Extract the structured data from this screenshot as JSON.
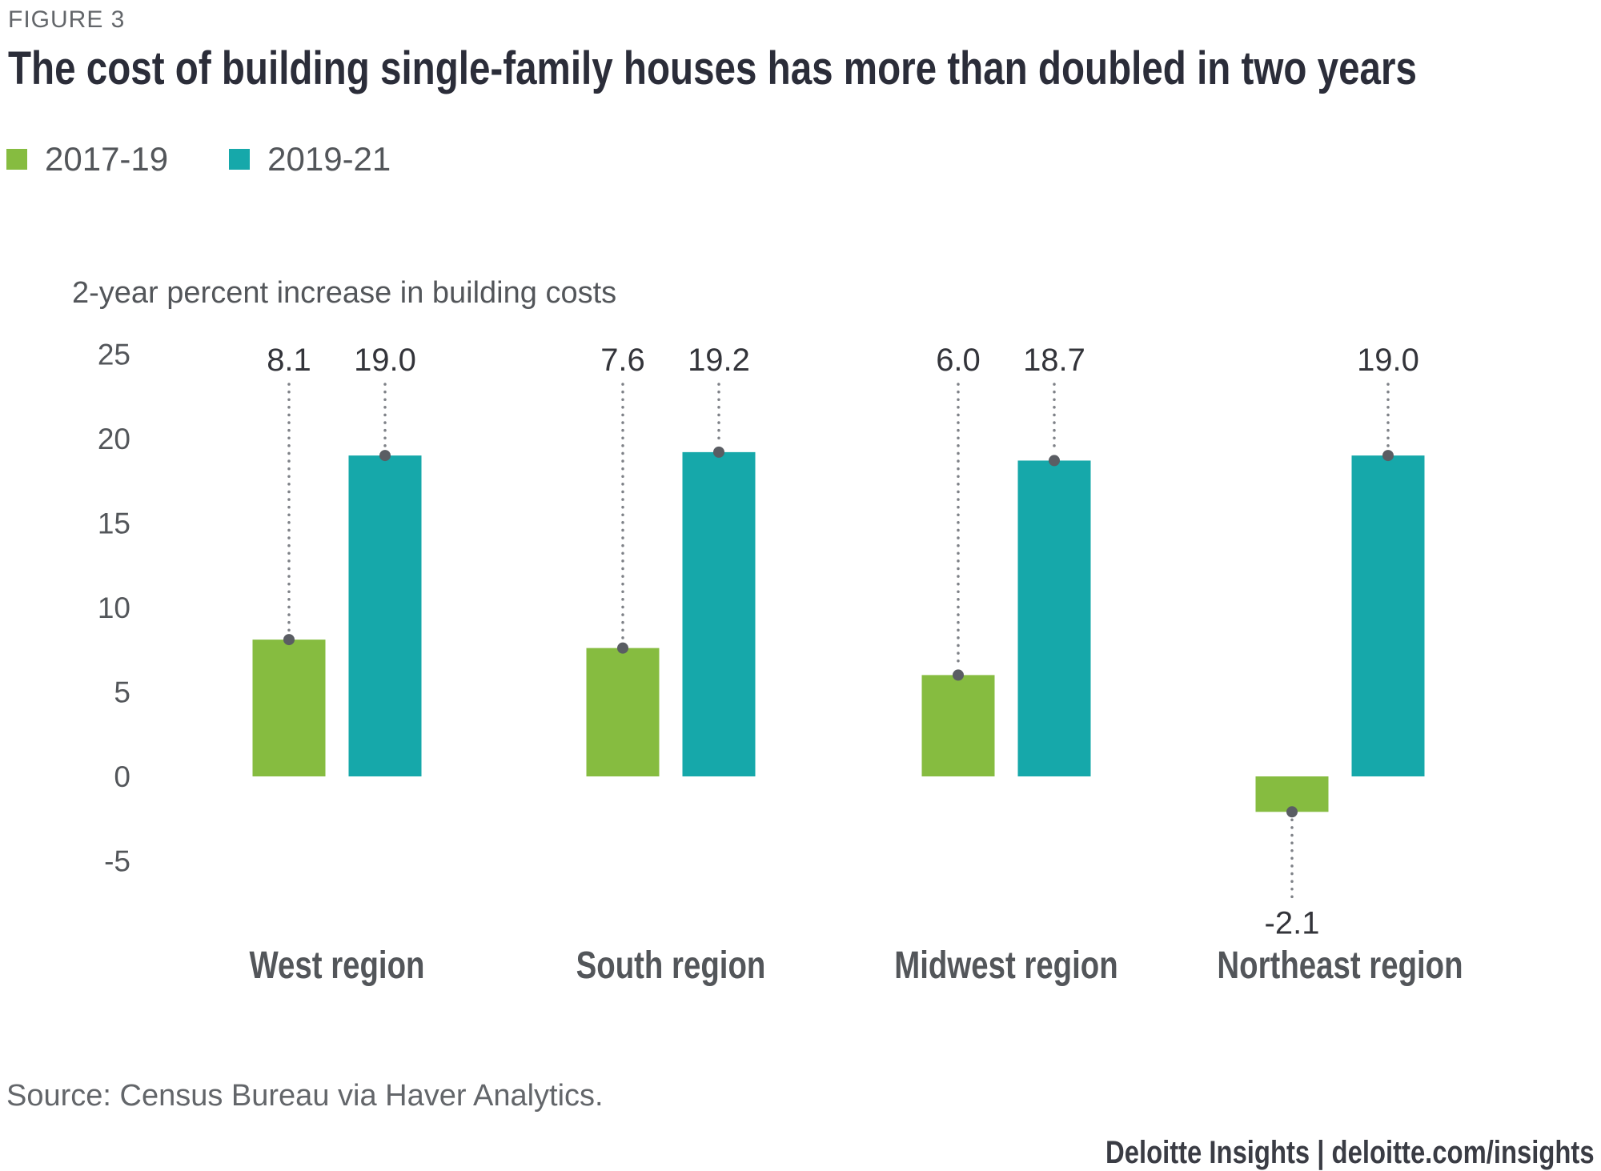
{
  "figure": {
    "label": "FIGURE 3",
    "title": "The cost of building single-family houses has more than doubled in two years"
  },
  "legend": {
    "items": [
      {
        "label": "2017-19",
        "color": "#86BC40"
      },
      {
        "label": "2019-21",
        "color": "#16A8AA"
      }
    ]
  },
  "chart_data": {
    "type": "bar",
    "title": "The cost of building single-family houses has more than doubled in two years",
    "xlabel": "",
    "ylabel": "2-year percent increase in building costs",
    "categories": [
      "West region",
      "South region",
      "Midwest region",
      "Northeast region"
    ],
    "series": [
      {
        "name": "2017-19",
        "color": "#86BC40",
        "values": [
          8.1,
          7.6,
          6.0,
          -2.1
        ]
      },
      {
        "name": "2019-21",
        "color": "#16A8AA",
        "values": [
          19.0,
          19.2,
          18.7,
          19.0
        ]
      }
    ],
    "yticks": [
      25,
      20,
      15,
      10,
      5,
      0,
      -5
    ],
    "ylim": [
      -7.5,
      25
    ],
    "grid": false,
    "axis_lines": false,
    "legend_position": "top-left",
    "annotation_style": "dotted leader line with round gray dot marker connecting each value label to its bar end",
    "leader_color": "#7E8187",
    "marker_color": "#5A5D63"
  },
  "footer": {
    "source": "Source: Census Bureau via Haver Analytics.",
    "branding": "Deloitte Insights | deloitte.com/insights"
  }
}
